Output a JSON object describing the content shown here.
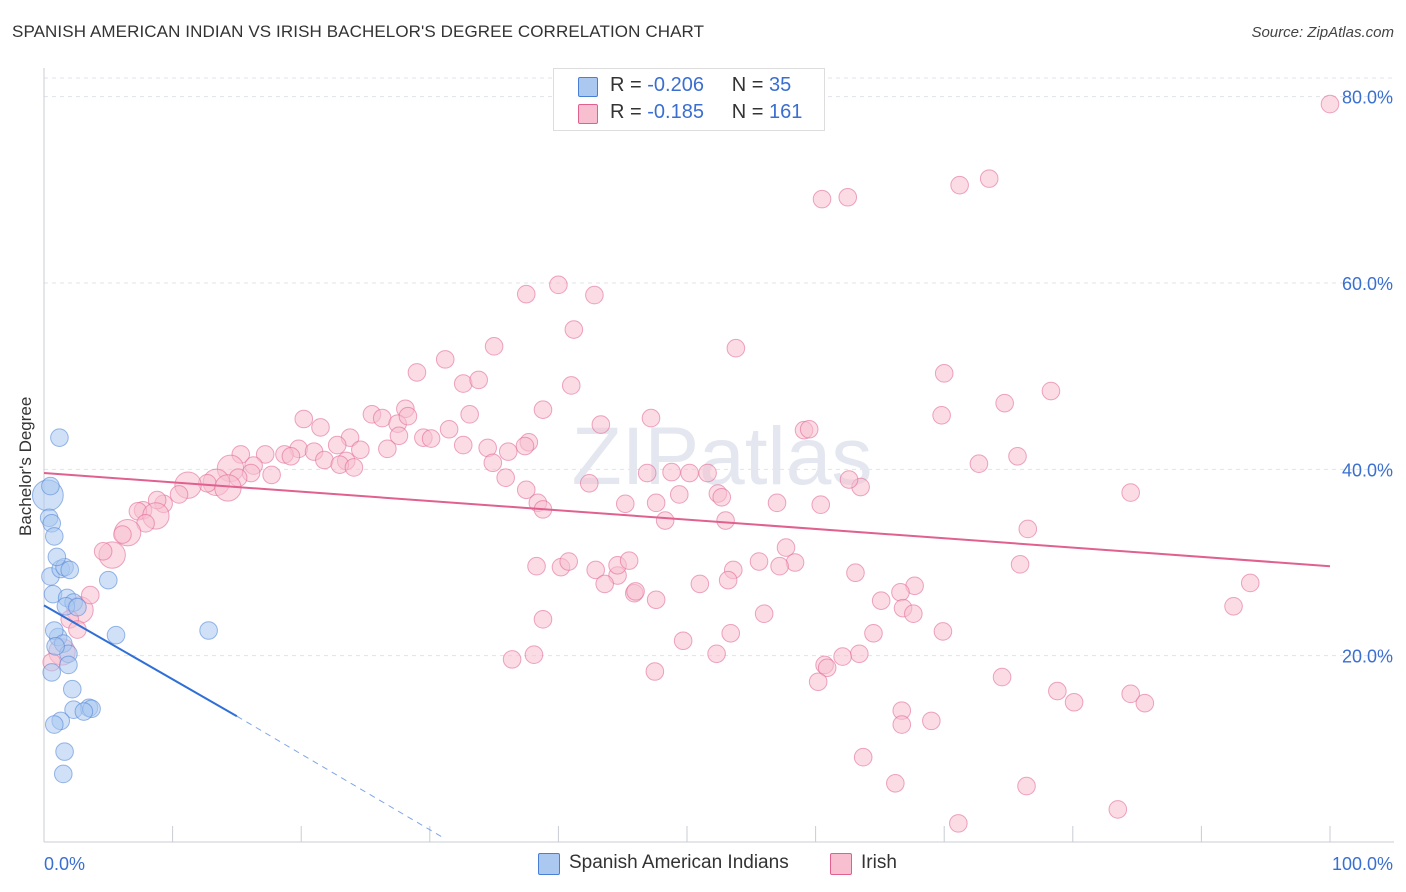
{
  "title": "SPANISH AMERICAN INDIAN VS IRISH BACHELOR'S DEGREE CORRELATION CHART",
  "source": "Source: ZipAtlas.com",
  "legend_top": {
    "rows": [
      {
        "r_label": "R =",
        "r_value": "-0.206",
        "n_label": "N =",
        "n_value": "35",
        "color": "#aac8f0"
      },
      {
        "r_label": "R =",
        "r_value": "-0.185",
        "n_label": "N =",
        "n_value": "161",
        "color": "#f7bfd0"
      }
    ]
  },
  "legend_bottom": [
    {
      "label": "Spanish American Indians",
      "color": "#aac8f0"
    },
    {
      "label": "Irish",
      "color": "#f7bfd0"
    }
  ],
  "watermark": "ZIPatlas",
  "chart_data": {
    "type": "scatter",
    "title": "SPANISH AMERICAN INDIAN VS IRISH BACHELOR'S DEGREE CORRELATION CHART",
    "xlabel": "",
    "ylabel": "Bachelor's Degree",
    "xlim": [
      0,
      100
    ],
    "ylim": [
      0,
      82
    ],
    "x_tick_labels": [
      "0.0%",
      "100.0%"
    ],
    "y_tick_labels": [
      "20.0%",
      "40.0%",
      "60.0%",
      "80.0%"
    ],
    "y_ticks": [
      20,
      40,
      60,
      80
    ],
    "grid": true,
    "legend_position": "top-center",
    "series": [
      {
        "name": "Spanish American Indians",
        "color": "#4a7fd6",
        "fill": "#aac8f0",
        "trend": {
          "x0": 0,
          "y0": 25.4,
          "x1": 15,
          "y1": 13.5,
          "dash_to_x": 31,
          "dash_to_y": 0.5
        },
        "points": [
          [
            0.3,
            37.2,
            14
          ],
          [
            0.4,
            34.8,
            8
          ],
          [
            0.6,
            34.2,
            8
          ],
          [
            0.8,
            32.8,
            8
          ],
          [
            1.2,
            43.4,
            8
          ],
          [
            0.5,
            28.5,
            8
          ],
          [
            1.3,
            29.3,
            8
          ],
          [
            1.6,
            29.5,
            8
          ],
          [
            2.0,
            29.2,
            8
          ],
          [
            0.7,
            26.6,
            8
          ],
          [
            1.8,
            26.2,
            8
          ],
          [
            2.3,
            25.7,
            8
          ],
          [
            1.7,
            25.3,
            8
          ],
          [
            1.1,
            22.0,
            8
          ],
          [
            0.8,
            22.7,
            8
          ],
          [
            1.5,
            21.3,
            8
          ],
          [
            1.9,
            20.2,
            8
          ],
          [
            1.9,
            19.0,
            8
          ],
          [
            0.6,
            18.2,
            8
          ],
          [
            2.2,
            16.4,
            8
          ],
          [
            3.5,
            14.4,
            8
          ],
          [
            3.7,
            14.3,
            8
          ],
          [
            2.3,
            14.2,
            8
          ],
          [
            1.3,
            13.0,
            8
          ],
          [
            0.8,
            12.6,
            8
          ],
          [
            1.6,
            9.7,
            8
          ],
          [
            1.5,
            7.3,
            8
          ],
          [
            5.0,
            28.1,
            8
          ],
          [
            5.6,
            22.2,
            8
          ],
          [
            12.8,
            22.7,
            8
          ],
          [
            0.5,
            38.2,
            8
          ],
          [
            1.0,
            30.6,
            8
          ],
          [
            0.9,
            21.0,
            8
          ],
          [
            2.6,
            25.2,
            8
          ],
          [
            3.1,
            14.0,
            8
          ]
        ]
      },
      {
        "name": "Irish",
        "color": "#e06090",
        "fill": "#f7bfd0",
        "trend": {
          "x0": 0,
          "y0": 39.6,
          "x1": 100,
          "y1": 29.6
        },
        "points": [
          [
            100,
            79.2,
            8
          ],
          [
            60.5,
            69.0,
            8
          ],
          [
            62.5,
            69.2,
            8
          ],
          [
            71.2,
            70.5,
            8
          ],
          [
            73.5,
            71.2,
            8
          ],
          [
            40,
            59.8,
            8
          ],
          [
            37.5,
            58.8,
            8
          ],
          [
            42.8,
            58.7,
            8
          ],
          [
            41.2,
            55.0,
            8
          ],
          [
            53.8,
            53.0,
            8
          ],
          [
            35,
            53.2,
            8
          ],
          [
            31.2,
            51.8,
            8
          ],
          [
            29.0,
            50.4,
            8
          ],
          [
            32.6,
            49.2,
            8
          ],
          [
            33.8,
            49.6,
            8
          ],
          [
            41.0,
            49.0,
            8
          ],
          [
            78.3,
            48.4,
            8
          ],
          [
            70.0,
            50.3,
            8
          ],
          [
            74.7,
            47.1,
            8
          ],
          [
            69.8,
            45.8,
            8
          ],
          [
            38.8,
            46.4,
            8
          ],
          [
            33.1,
            45.9,
            8
          ],
          [
            28.1,
            46.5,
            8
          ],
          [
            25.5,
            45.9,
            8
          ],
          [
            26.3,
            45.5,
            8
          ],
          [
            27.5,
            44.9,
            8
          ],
          [
            28.3,
            45.7,
            8
          ],
          [
            20.2,
            45.4,
            8
          ],
          [
            21.5,
            44.5,
            8
          ],
          [
            31.5,
            44.3,
            8
          ],
          [
            27.6,
            43.6,
            8
          ],
          [
            29.5,
            43.4,
            8
          ],
          [
            30.1,
            43.3,
            8
          ],
          [
            23.8,
            43.4,
            8
          ],
          [
            19.8,
            42.2,
            8
          ],
          [
            17.2,
            41.6,
            8
          ],
          [
            21.0,
            41.9,
            8
          ],
          [
            22.8,
            42.6,
            8
          ],
          [
            24.6,
            42.1,
            8
          ],
          [
            26.7,
            42.2,
            8
          ],
          [
            32.6,
            42.6,
            8
          ],
          [
            37.7,
            42.9,
            8
          ],
          [
            37.4,
            42.5,
            8
          ],
          [
            34.5,
            42.3,
            8
          ],
          [
            36.1,
            41.9,
            8
          ],
          [
            43.3,
            44.8,
            8
          ],
          [
            47.2,
            45.5,
            8
          ],
          [
            59.1,
            44.2,
            8
          ],
          [
            59.5,
            44.3,
            8
          ],
          [
            75.7,
            41.4,
            8
          ],
          [
            72.7,
            40.6,
            8
          ],
          [
            15.3,
            41.6,
            8
          ],
          [
            18.7,
            41.6,
            8
          ],
          [
            19.2,
            41.4,
            8
          ],
          [
            21.8,
            41.0,
            8
          ],
          [
            23.5,
            40.9,
            8
          ],
          [
            23.0,
            40.5,
            8
          ],
          [
            24.1,
            40.2,
            8
          ],
          [
            14.5,
            40.1,
            12
          ],
          [
            16.3,
            40.4,
            8
          ],
          [
            17.7,
            39.4,
            8
          ],
          [
            16.1,
            39.6,
            8
          ],
          [
            13.4,
            38.6,
            12
          ],
          [
            15.1,
            39.1,
            8
          ],
          [
            12.7,
            38.5,
            8
          ],
          [
            11.2,
            38.3,
            12
          ],
          [
            14.3,
            38.0,
            12
          ],
          [
            10.5,
            37.3,
            8
          ],
          [
            9.3,
            36.3,
            8
          ],
          [
            8.8,
            36.7,
            8
          ],
          [
            7.7,
            35.6,
            8
          ],
          [
            7.3,
            35.5,
            8
          ],
          [
            8.7,
            35.0,
            12
          ],
          [
            7.9,
            34.2,
            8
          ],
          [
            6.5,
            33.2,
            12
          ],
          [
            6.1,
            33.0,
            8
          ],
          [
            5.3,
            30.8,
            12
          ],
          [
            4.6,
            31.2,
            8
          ],
          [
            37.5,
            37.8,
            8
          ],
          [
            35.9,
            39.1,
            8
          ],
          [
            42.4,
            38.5,
            8
          ],
          [
            34.9,
            40.7,
            8
          ],
          [
            38.4,
            36.4,
            8
          ],
          [
            38.8,
            35.7,
            8
          ],
          [
            45.2,
            36.3,
            8
          ],
          [
            47.6,
            36.4,
            8
          ],
          [
            49.4,
            37.3,
            8
          ],
          [
            50.2,
            39.6,
            8
          ],
          [
            52.4,
            37.4,
            8
          ],
          [
            52.7,
            37.0,
            8
          ],
          [
            57.0,
            36.4,
            8
          ],
          [
            60.4,
            36.2,
            8
          ],
          [
            63.5,
            38.1,
            8
          ],
          [
            62.6,
            38.9,
            8
          ],
          [
            84.5,
            37.5,
            8
          ],
          [
            46.9,
            39.6,
            8
          ],
          [
            48.8,
            39.7,
            8
          ],
          [
            51.6,
            39.6,
            8
          ],
          [
            48.3,
            34.5,
            8
          ],
          [
            53.0,
            34.5,
            8
          ],
          [
            57.7,
            31.6,
            8
          ],
          [
            58.4,
            30.0,
            8
          ],
          [
            55.6,
            30.1,
            8
          ],
          [
            57.2,
            29.6,
            8
          ],
          [
            53.6,
            29.2,
            8
          ],
          [
            53.2,
            28.1,
            8
          ],
          [
            51.0,
            27.7,
            8
          ],
          [
            47.6,
            26.0,
            8
          ],
          [
            45.9,
            26.7,
            8
          ],
          [
            46.0,
            26.9,
            8
          ],
          [
            44.6,
            28.6,
            8
          ],
          [
            42.9,
            29.2,
            8
          ],
          [
            43.6,
            27.7,
            8
          ],
          [
            40.2,
            29.5,
            8
          ],
          [
            40.8,
            30.1,
            8
          ],
          [
            38.3,
            29.6,
            8
          ],
          [
            76.5,
            33.6,
            8
          ],
          [
            75.9,
            29.8,
            8
          ],
          [
            93.8,
            27.8,
            8
          ],
          [
            92.5,
            25.3,
            8
          ],
          [
            67.7,
            27.5,
            8
          ],
          [
            66.6,
            26.8,
            8
          ],
          [
            63.1,
            28.9,
            8
          ],
          [
            66.8,
            25.1,
            8
          ],
          [
            65.1,
            25.9,
            8
          ],
          [
            67.6,
            24.5,
            8
          ],
          [
            69.9,
            22.6,
            8
          ],
          [
            64.5,
            22.4,
            8
          ],
          [
            63.4,
            20.2,
            8
          ],
          [
            62.1,
            19.9,
            8
          ],
          [
            60.7,
            19.0,
            8
          ],
          [
            60.9,
            18.7,
            8
          ],
          [
            60.2,
            17.2,
            8
          ],
          [
            56.0,
            24.5,
            8
          ],
          [
            53.4,
            22.4,
            8
          ],
          [
            52.3,
            20.2,
            8
          ],
          [
            49.7,
            21.6,
            8
          ],
          [
            47.5,
            18.3,
            8
          ],
          [
            44.6,
            29.7,
            8
          ],
          [
            38.8,
            23.9,
            8
          ],
          [
            38.1,
            20.1,
            8
          ],
          [
            36.4,
            19.6,
            8
          ],
          [
            45.5,
            30.2,
            8
          ],
          [
            74.5,
            17.7,
            8
          ],
          [
            78.8,
            16.2,
            8
          ],
          [
            80.1,
            15.0,
            8
          ],
          [
            84.5,
            15.9,
            8
          ],
          [
            85.6,
            14.9,
            8
          ],
          [
            66.7,
            14.1,
            8
          ],
          [
            66.7,
            12.6,
            8
          ],
          [
            63.7,
            9.1,
            8
          ],
          [
            69.0,
            13.0,
            8
          ],
          [
            66.2,
            6.3,
            8
          ],
          [
            71.1,
            2.0,
            8
          ],
          [
            76.4,
            6.0,
            8
          ],
          [
            83.5,
            3.5,
            8
          ],
          [
            2.8,
            24.9,
            12
          ],
          [
            2.0,
            23.9,
            8
          ],
          [
            2.6,
            22.8,
            8
          ],
          [
            1.4,
            20.4,
            12
          ],
          [
            0.6,
            19.3,
            8
          ],
          [
            3.6,
            26.5,
            8
          ]
        ]
      }
    ]
  }
}
